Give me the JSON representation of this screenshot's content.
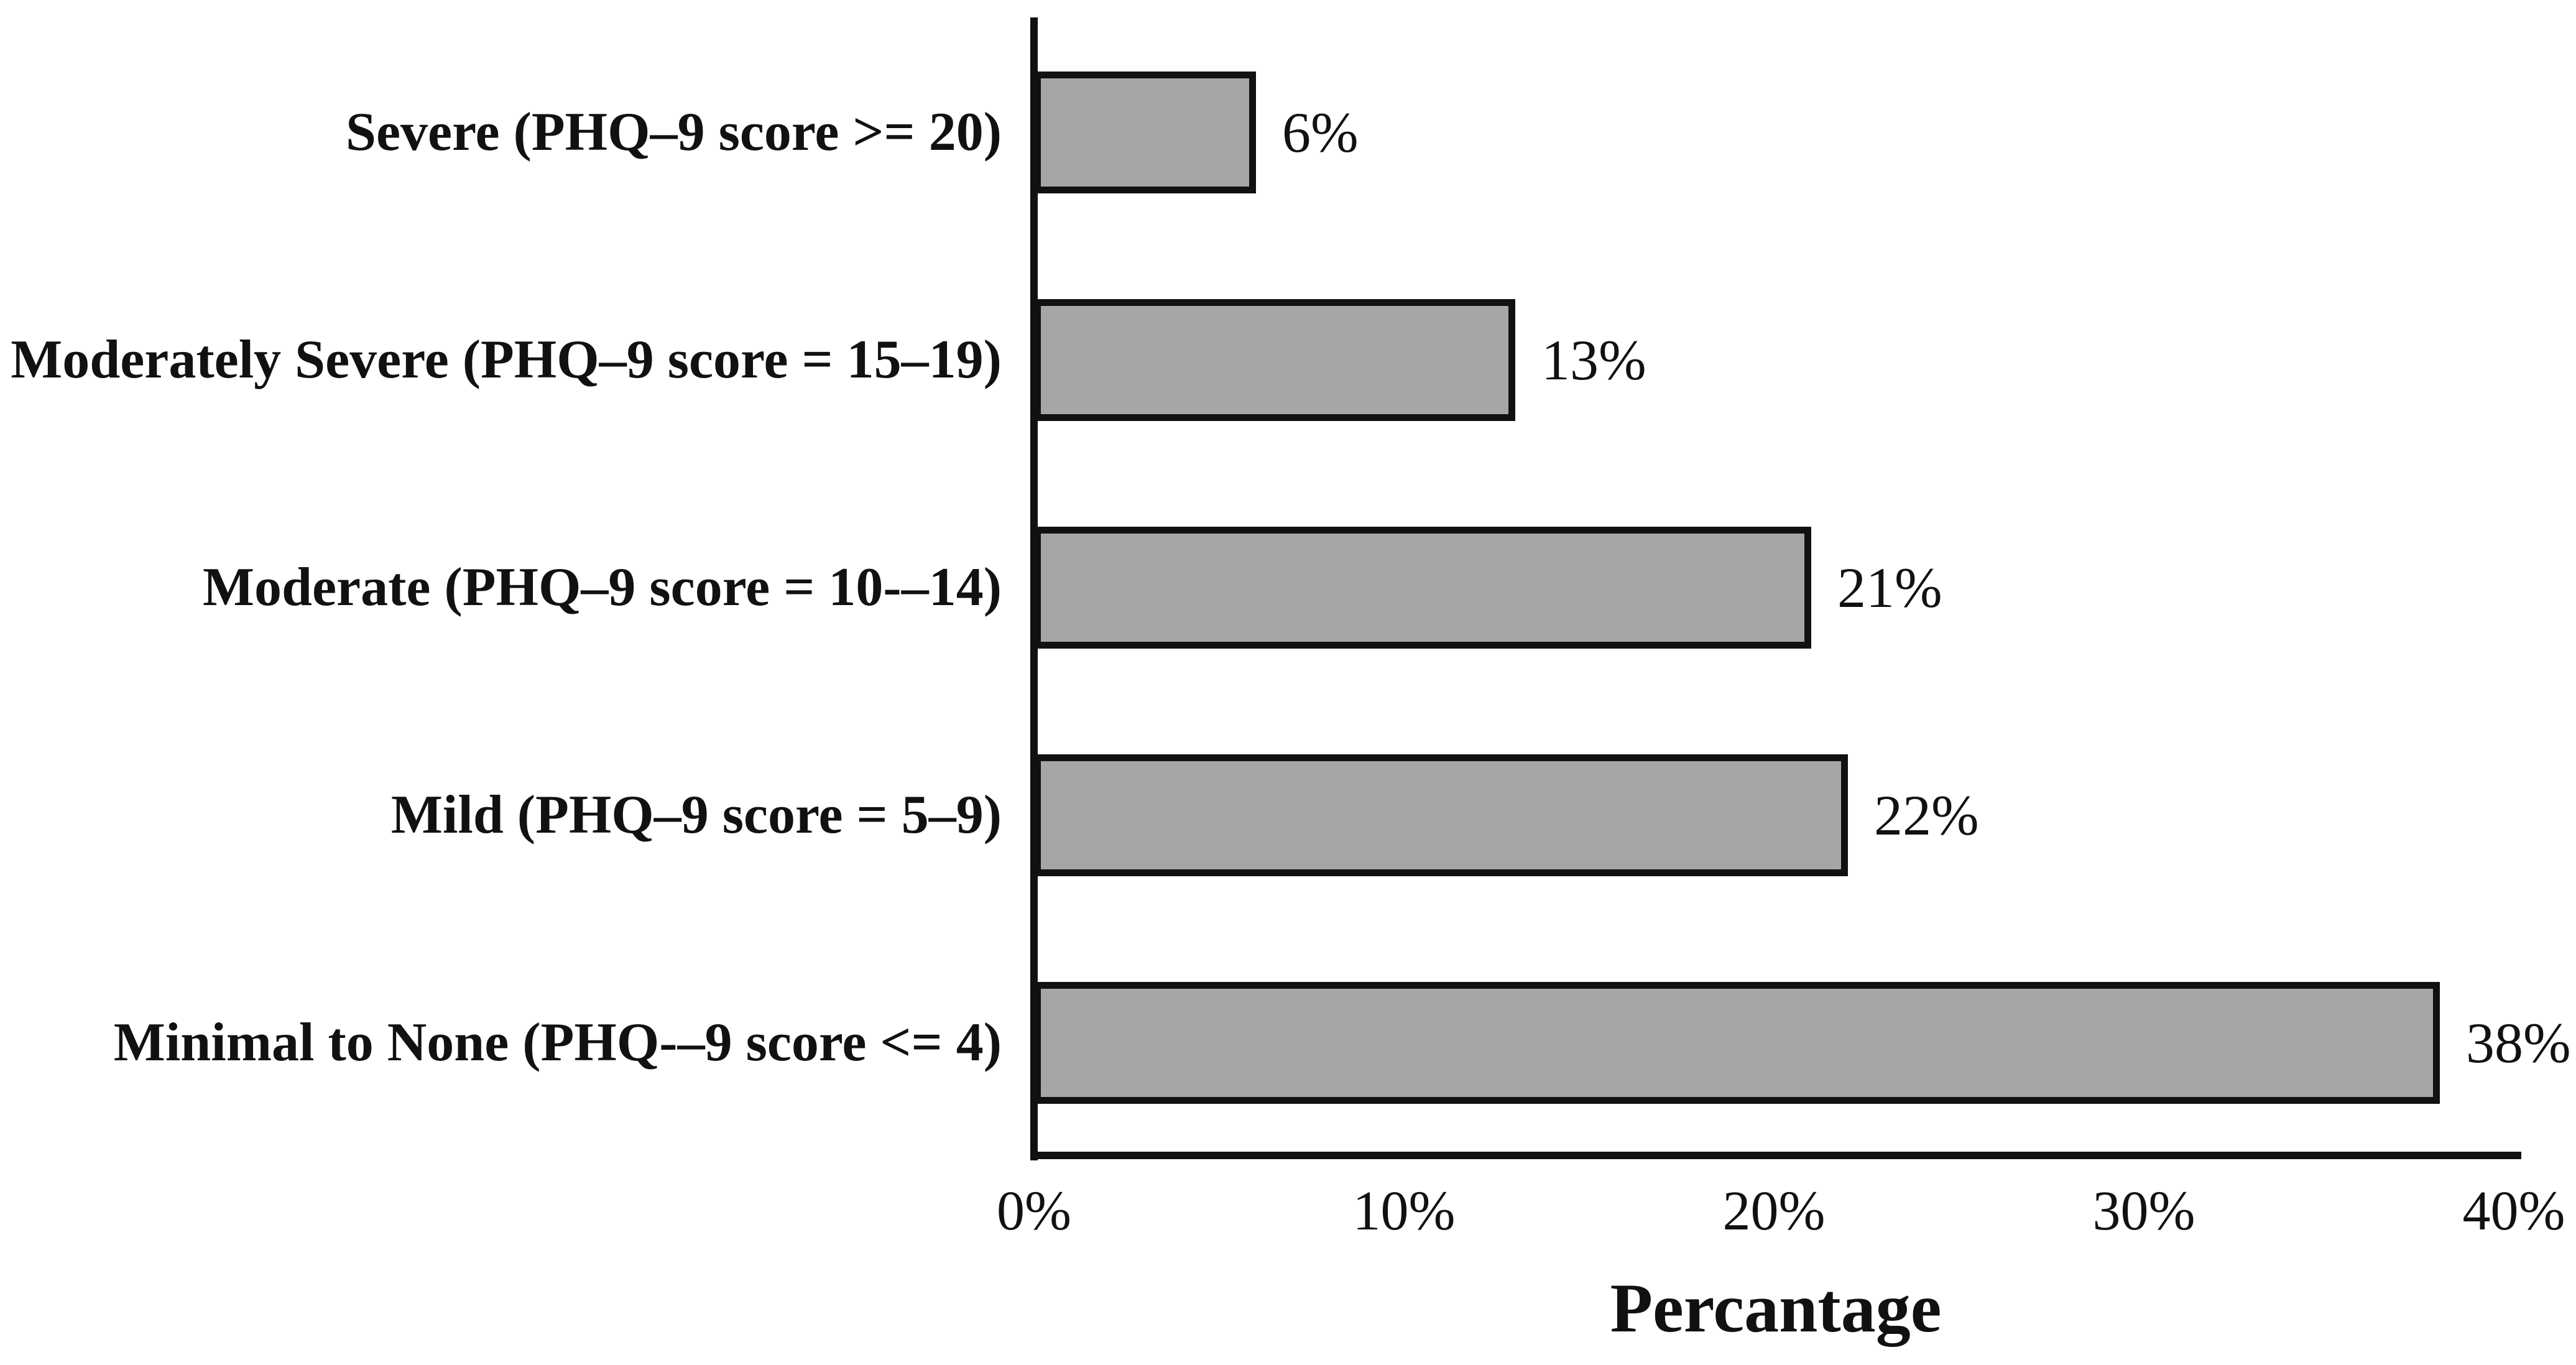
{
  "chart_data": {
    "type": "bar",
    "orientation": "horizontal",
    "title": "",
    "xlabel": "Percantage",
    "categories": [
      "Severe (PHQ–9 score >= 20)",
      "Moderately Severe (PHQ–9 score = 15–19)",
      "Moderate (PHQ–9 score = 10-–14)",
      "Mild (PHQ–9 score = 5–9)",
      "Minimal to None (PHQ-–9 score <= 4)"
    ],
    "values": [
      6,
      13,
      21,
      22,
      38
    ],
    "value_labels": [
      "6%",
      "13%",
      "21%",
      "22%",
      "38%"
    ],
    "x_ticks": [
      "0%",
      "10%",
      "20%",
      "30%",
      "40%"
    ],
    "x_tick_values": [
      0,
      10,
      20,
      30,
      40
    ],
    "xlim": [
      0,
      40
    ],
    "grid": false,
    "legend": null,
    "bar_color": "#a6a6a6",
    "bar_border_color": "#111111",
    "axis_color": "#111111",
    "text_color": "#111111",
    "background_color": "#ffffff"
  }
}
